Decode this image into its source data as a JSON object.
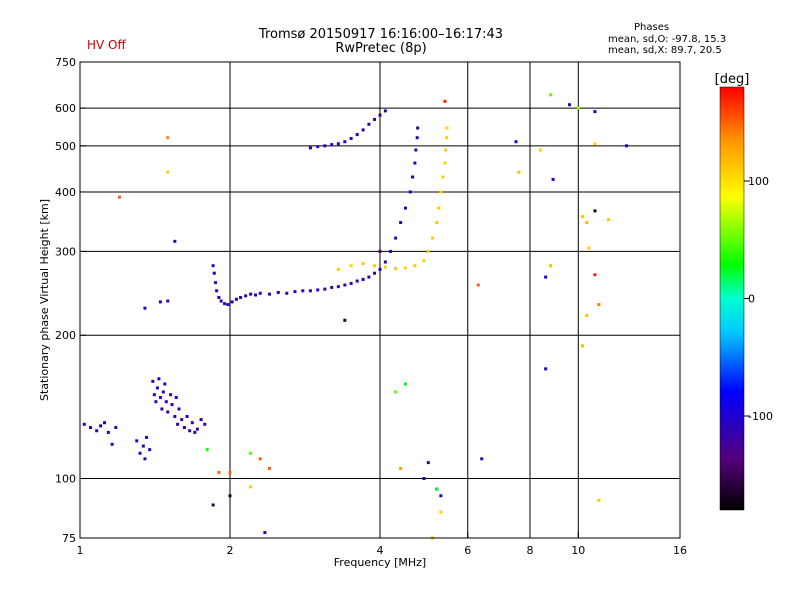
{
  "header": {
    "hv_status": "HV Off",
    "title_line1": "Tromsø 20150917 16:16:00–16:17:43",
    "title_line2": "RwPretec (8p)",
    "phases_title": "Phases",
    "phases_line1": "mean, sd,O: -97.8, 15.3",
    "phases_line2": "mean, sd,X:  89.7, 20.5"
  },
  "chart_data": {
    "type": "scatter",
    "title": "Tromsø 20150917 16:16:00–16:17:43",
    "subtitle": "RwPretec (8p)",
    "xlabel": "Frequency [MHz]",
    "ylabel": "Stationary phase Virtual Height [km]",
    "xscale": "log",
    "yscale": "log",
    "xlim": [
      1,
      16
    ],
    "ylim": [
      75,
      750
    ],
    "x_ticks": [
      1,
      2,
      4,
      6,
      8,
      10,
      16
    ],
    "x_tick_labels": [
      "1",
      "2",
      "4",
      "6",
      "8",
      "10",
      "16"
    ],
    "y_ticks": [
      75,
      100,
      200,
      300,
      400,
      500,
      600,
      750
    ],
    "y_tick_labels": [
      "75",
      "100",
      "200",
      "300",
      "400",
      "500",
      "600",
      "750"
    ],
    "vertical_grid": [
      2,
      4,
      6,
      8,
      10
    ],
    "horizontal_grid": [
      100,
      200,
      300,
      400,
      500,
      600
    ],
    "colorbar": {
      "label": "[deg]",
      "range": [
        -180,
        180
      ],
      "ticks": [
        100,
        0,
        -100
      ],
      "tick_labels": [
        "100",
        "0",
        "-100"
      ]
    },
    "points_columns": [
      "frequency_mhz",
      "height_km",
      "phase_deg"
    ],
    "points": [
      [
        1.02,
        130,
        -105
      ],
      [
        1.05,
        128,
        -110
      ],
      [
        1.08,
        126,
        -105
      ],
      [
        1.1,
        129,
        -100
      ],
      [
        1.14,
        125,
        -108
      ],
      [
        1.18,
        128,
        -105
      ],
      [
        1.16,
        118,
        -110
      ],
      [
        1.12,
        131,
        -102
      ],
      [
        1.3,
        120,
        -110
      ],
      [
        1.32,
        113,
        -112
      ],
      [
        1.34,
        117,
        -108
      ],
      [
        1.36,
        122,
        -105
      ],
      [
        1.35,
        110,
        -115
      ],
      [
        1.38,
        115,
        -110
      ],
      [
        1.4,
        160,
        -110
      ],
      [
        1.41,
        150,
        -115
      ],
      [
        1.42,
        145,
        -108
      ],
      [
        1.43,
        155,
        -112
      ],
      [
        1.44,
        162,
        -105
      ],
      [
        1.45,
        148,
        -110
      ],
      [
        1.46,
        140,
        -112
      ],
      [
        1.47,
        152,
        -108
      ],
      [
        1.48,
        158,
        -110
      ],
      [
        1.49,
        145,
        -105
      ],
      [
        1.5,
        138,
        -110
      ],
      [
        1.52,
        150,
        -115
      ],
      [
        1.53,
        143,
        -108
      ],
      [
        1.55,
        135,
        -110
      ],
      [
        1.56,
        148,
        -112
      ],
      [
        1.57,
        130,
        -110
      ],
      [
        1.58,
        140,
        -105
      ],
      [
        1.6,
        133,
        -110
      ],
      [
        1.62,
        128,
        -108
      ],
      [
        1.64,
        135,
        -112
      ],
      [
        1.66,
        126,
        -110
      ],
      [
        1.68,
        131,
        -105
      ],
      [
        1.7,
        125,
        -110
      ],
      [
        1.72,
        127,
        -115
      ],
      [
        1.75,
        133,
        -110
      ],
      [
        1.78,
        130,
        -108
      ],
      [
        1.85,
        280,
        -105
      ],
      [
        1.86,
        270,
        -110
      ],
      [
        1.87,
        258,
        -108
      ],
      [
        1.88,
        248,
        -110
      ],
      [
        1.9,
        240,
        -112
      ],
      [
        1.92,
        236,
        -108
      ],
      [
        1.95,
        233,
        -110
      ],
      [
        1.98,
        232,
        -105
      ],
      [
        2.02,
        235,
        -110
      ],
      [
        2.06,
        238,
        -108
      ],
      [
        2.1,
        240,
        -110
      ],
      [
        2.15,
        242,
        -112
      ],
      [
        2.2,
        244,
        -108
      ],
      [
        2.25,
        243,
        -110
      ],
      [
        2.3,
        245,
        -105
      ],
      [
        2.4,
        244,
        -110
      ],
      [
        2.5,
        246,
        -108
      ],
      [
        2.6,
        245,
        -110
      ],
      [
        2.7,
        247,
        -112
      ],
      [
        2.8,
        248,
        -108
      ],
      [
        2.9,
        248,
        -110
      ],
      [
        3.0,
        249,
        -105
      ],
      [
        3.1,
        250,
        -110
      ],
      [
        3.2,
        252,
        -108
      ],
      [
        3.3,
        253,
        -110
      ],
      [
        3.4,
        255,
        -112
      ],
      [
        3.5,
        257,
        -108
      ],
      [
        3.6,
        260,
        -110
      ],
      [
        3.7,
        262,
        -105
      ],
      [
        3.8,
        265,
        -110
      ],
      [
        3.9,
        270,
        -108
      ],
      [
        4.0,
        275,
        -110
      ],
      [
        4.1,
        285,
        -110
      ],
      [
        4.2,
        300,
        -108
      ],
      [
        4.3,
        320,
        -110
      ],
      [
        4.4,
        345,
        -112
      ],
      [
        4.5,
        370,
        -108
      ],
      [
        4.6,
        400,
        -110
      ],
      [
        4.65,
        430,
        -105
      ],
      [
        4.7,
        460,
        -110
      ],
      [
        4.72,
        490,
        -108
      ],
      [
        4.75,
        520,
        -110
      ],
      [
        4.76,
        545,
        -112
      ],
      [
        2.9,
        495,
        -108
      ],
      [
        3.0,
        498,
        -110
      ],
      [
        3.1,
        500,
        -105
      ],
      [
        3.2,
        503,
        -110
      ],
      [
        3.3,
        505,
        -108
      ],
      [
        3.4,
        510,
        -110
      ],
      [
        3.5,
        518,
        -112
      ],
      [
        3.6,
        528,
        -108
      ],
      [
        3.7,
        540,
        -110
      ],
      [
        3.8,
        555,
        -105
      ],
      [
        3.9,
        568,
        -110
      ],
      [
        4.0,
        580,
        -108
      ],
      [
        4.1,
        592,
        -110
      ],
      [
        1.45,
        235,
        -105
      ],
      [
        1.5,
        236,
        -108
      ],
      [
        1.35,
        228,
        -110
      ],
      [
        1.55,
        315,
        -120
      ],
      [
        3.3,
        275,
        110
      ],
      [
        3.5,
        280,
        105
      ],
      [
        3.7,
        283,
        110
      ],
      [
        3.9,
        280,
        108
      ],
      [
        4.1,
        278,
        110
      ],
      [
        4.3,
        276,
        112
      ],
      [
        4.5,
        277,
        108
      ],
      [
        4.7,
        280,
        110
      ],
      [
        4.9,
        287,
        105
      ],
      [
        5.0,
        300,
        110
      ],
      [
        5.1,
        320,
        108
      ],
      [
        5.2,
        345,
        110
      ],
      [
        5.25,
        370,
        112
      ],
      [
        5.3,
        400,
        108
      ],
      [
        5.35,
        430,
        110
      ],
      [
        5.4,
        460,
        105
      ],
      [
        5.42,
        490,
        110
      ],
      [
        5.44,
        520,
        108
      ],
      [
        5.45,
        545,
        110
      ],
      [
        1.5,
        520,
        140
      ],
      [
        1.5,
        440,
        110
      ],
      [
        1.2,
        390,
        150
      ],
      [
        5.4,
        620,
        170
      ],
      [
        7.6,
        440,
        115
      ],
      [
        8.4,
        490,
        110
      ],
      [
        8.8,
        640,
        50
      ],
      [
        10.0,
        600,
        60
      ],
      [
        10.8,
        505,
        110
      ],
      [
        10.2,
        355,
        115
      ],
      [
        10.4,
        345,
        120
      ],
      [
        11.5,
        350,
        110
      ],
      [
        10.5,
        305,
        112
      ],
      [
        7.5,
        510,
        -100
      ],
      [
        8.9,
        425,
        -110
      ],
      [
        9.6,
        610,
        -105
      ],
      [
        10.8,
        590,
        -100
      ],
      [
        12.5,
        500,
        -95
      ],
      [
        8.6,
        265,
        -100
      ],
      [
        8.6,
        170,
        -100
      ],
      [
        6.4,
        110,
        -110
      ],
      [
        5.0,
        108,
        -100
      ],
      [
        5.2,
        95,
        -110
      ],
      [
        4.9,
        100,
        -100
      ],
      [
        5.3,
        92,
        -95
      ],
      [
        1.9,
        103,
        150
      ],
      [
        2.0,
        103,
        150
      ],
      [
        2.3,
        110,
        150
      ],
      [
        2.4,
        105,
        150
      ],
      [
        4.4,
        105,
        130
      ],
      [
        6.3,
        255,
        150
      ],
      [
        11.0,
        232,
        140
      ],
      [
        10.8,
        268,
        170
      ],
      [
        10.2,
        190,
        120
      ],
      [
        10.4,
        220,
        115
      ],
      [
        11.0,
        90,
        110
      ],
      [
        5.1,
        75,
        110
      ],
      [
        5.3,
        85,
        110
      ],
      [
        4.3,
        152,
        50
      ],
      [
        4.5,
        158,
        30
      ],
      [
        1.8,
        115,
        30
      ],
      [
        5.2,
        95,
        20
      ],
      [
        2.2,
        113,
        45
      ],
      [
        1.85,
        88,
        -160
      ],
      [
        2.0,
        92,
        -165
      ],
      [
        2.35,
        77,
        -110
      ],
      [
        2.2,
        96,
        110
      ],
      [
        10.8,
        365,
        -170
      ],
      [
        3.4,
        215,
        -165
      ],
      [
        4.0,
        300,
        -140
      ],
      [
        8.8,
        280,
        120
      ]
    ]
  }
}
